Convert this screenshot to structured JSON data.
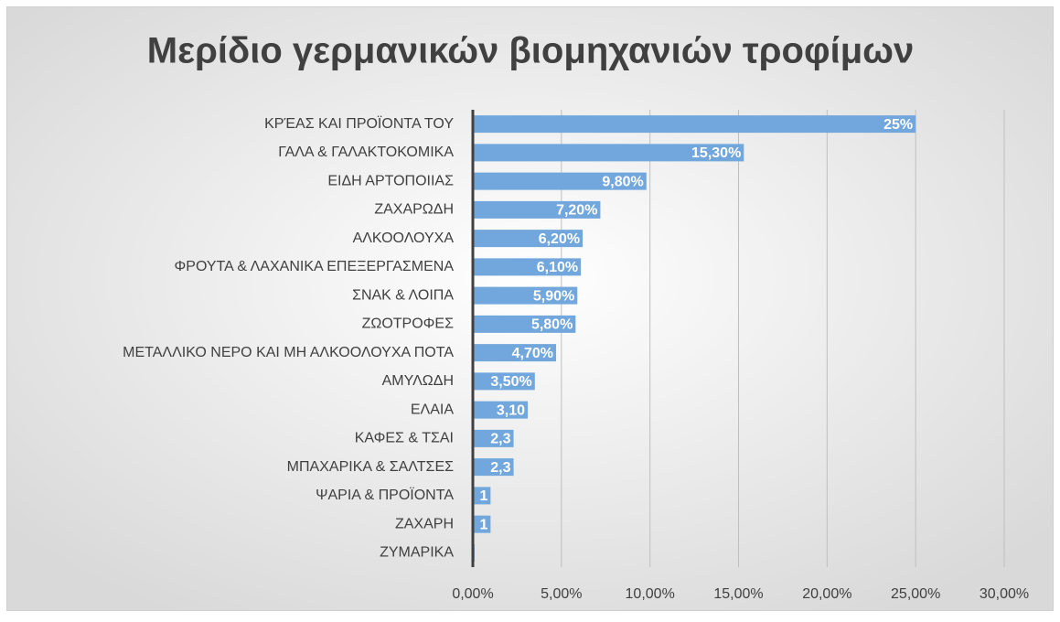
{
  "chart_data": {
    "type": "bar",
    "orientation": "horizontal",
    "title": "Μερίδιο γερμανικών βιομηχανιών τροφίμων",
    "categories": [
      "ΚΡΈΑΣ ΚΑΙ ΠΡΟΪΟΝΤΑ ΤΟΥ",
      "ΓΑΛΑ & ΓΑΛΑΚΤΟΚΟΜΙΚΑ",
      "ΕΙΔΗ ΑΡΤΟΠΟΙΙΑΣ",
      "ΖΑΧΑΡΩΔΗ",
      "ΑΛΚΟΟΛΟΥΧΑ",
      "ΦΡΟΥΤΑ & ΛΑΧΑΝΙΚΑ ΕΠΕΞΕΡΓΑΣΜΕΝΑ",
      "ΣΝΑΚ & ΛΟΙΠΑ",
      "ΖΩΟΤΡΟΦΕΣ",
      "ΜΕΤΑΛΛΙΚΟ ΝΕΡΟ ΚΑΙ ΜΗ ΑΛΚΟΟΛΟΥΧΑ ΠΟΤΑ",
      "ΑΜΥΛΩΔΗ",
      "ΕΛΑΙΑ",
      "ΚΑΦΕΣ & ΤΣΑΙ",
      "ΜΠΑΧΑΡΙΚΑ & ΣΑΛΤΣΕΣ",
      "ΨΑΡΙΑ & ΠΡΟΪΟΝΤΑ",
      "ΖΑΧΑΡΗ",
      "ΖΥΜΑΡΙΚΑ"
    ],
    "values": [
      25,
      15.3,
      9.8,
      7.2,
      6.2,
      6.1,
      5.9,
      5.8,
      4.7,
      3.5,
      3.1,
      2.3,
      2.3,
      1,
      1,
      0.1
    ],
    "value_labels": [
      "25%",
      "15,30%",
      "9,80%",
      "7,20%",
      "6,20%",
      "6,10%",
      "5,90%",
      "5,80%",
      "4,70%",
      "3,50%",
      "3,10",
      "2,3",
      "2,3",
      "1",
      "1",
      null
    ],
    "color": "#71a7dd",
    "xlim": [
      0,
      30
    ],
    "xticks": [
      {
        "value": 0,
        "label": "0,00%"
      },
      {
        "value": 5,
        "label": "5,00%"
      },
      {
        "value": 10,
        "label": "10,00%"
      },
      {
        "value": 15,
        "label": "15,00%"
      },
      {
        "value": 20,
        "label": "20,00%"
      },
      {
        "value": 25,
        "label": "25,00%"
      },
      {
        "value": 30,
        "label": "30,00%"
      }
    ],
    "grid": true
  }
}
